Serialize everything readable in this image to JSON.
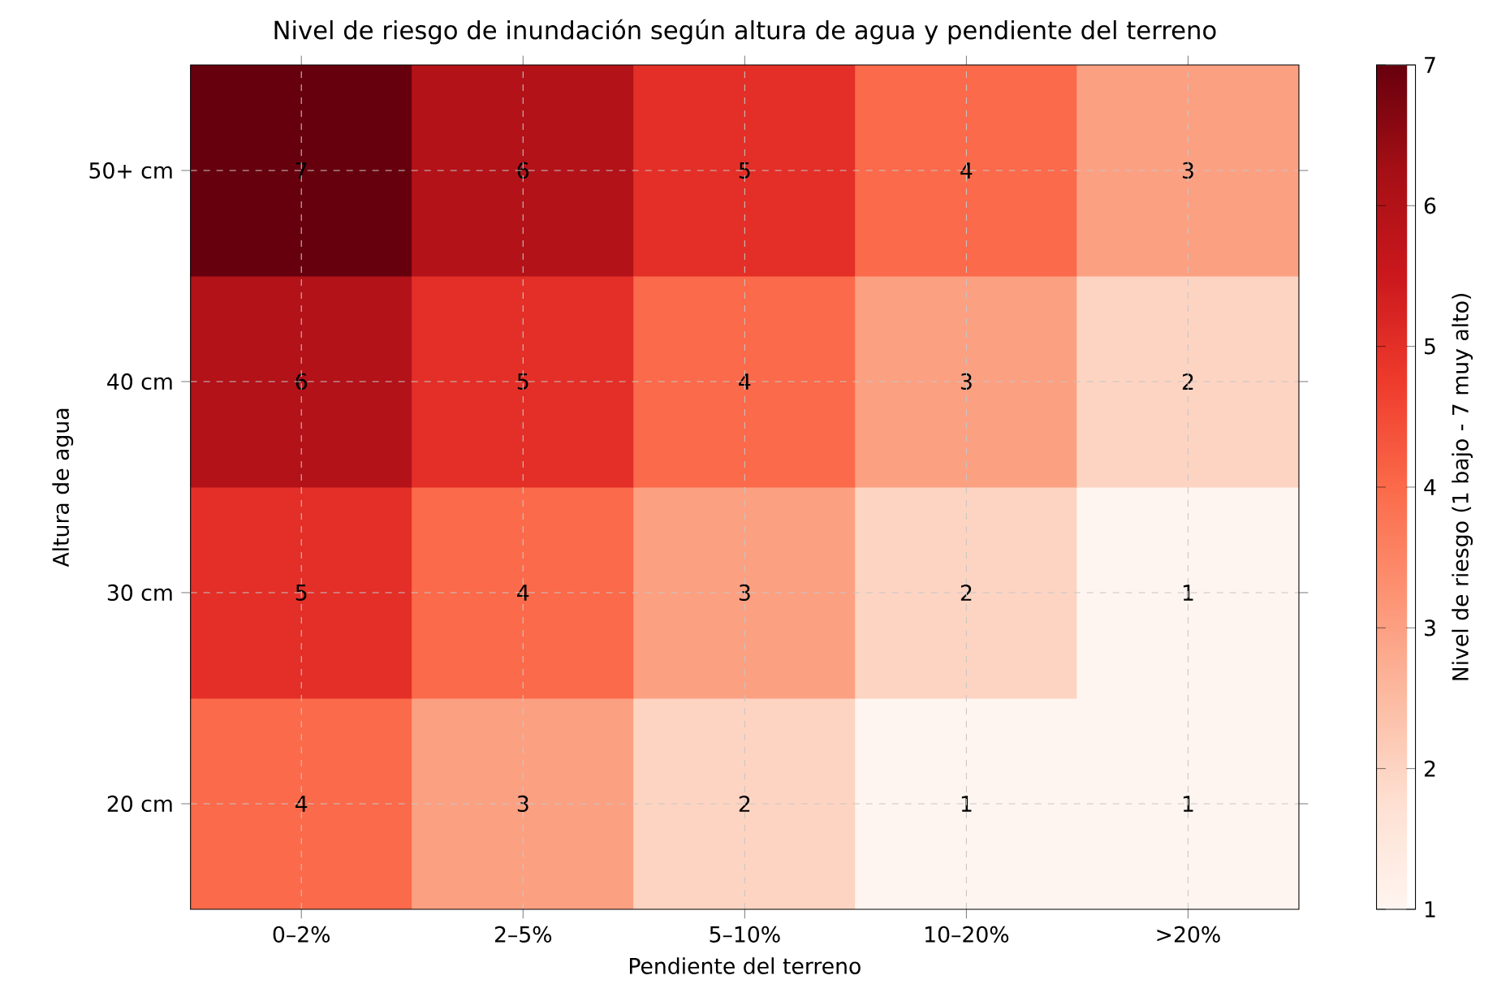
{
  "chart_data": {
    "type": "heatmap",
    "title": "Nivel de riesgo de inundación según altura de agua y pendiente del terreno",
    "xlabel": "Pendiente del terreno",
    "ylabel": "Altura de agua",
    "clabel": "Nivel de riesgo (1 bajo - 7 muy alto)",
    "categories": [
      "0–2%",
      "2–5%",
      "5–10%",
      "10–20%",
      ">20%"
    ],
    "y_categories": [
      "50+ cm",
      "40 cm",
      "30 cm",
      "20 cm"
    ],
    "cells": [
      [
        7,
        6,
        5,
        4,
        3
      ],
      [
        6,
        5,
        4,
        3,
        2
      ],
      [
        5,
        4,
        3,
        2,
        1
      ],
      [
        4,
        3,
        2,
        1,
        1
      ]
    ],
    "clim": [
      1,
      7
    ],
    "cticks": [
      1,
      2,
      3,
      4,
      5,
      6,
      7
    ],
    "data_labels": true,
    "grid": true
  }
}
